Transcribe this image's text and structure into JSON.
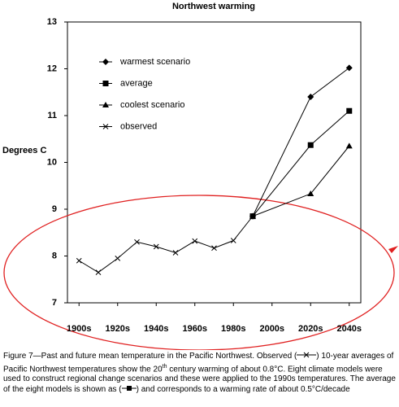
{
  "chart_data": {
    "type": "line",
    "title": "Northwest warming",
    "y_label": "Degrees C",
    "xlim": [
      1894,
      2046
    ],
    "ylim": [
      7,
      13
    ],
    "xticks": [
      {
        "value": 1900,
        "label": "1900s"
      },
      {
        "value": 1920,
        "label": "1920s"
      },
      {
        "value": 1940,
        "label": "1940s"
      },
      {
        "value": 1960,
        "label": "1960s"
      },
      {
        "value": 1980,
        "label": "1980s"
      },
      {
        "value": 2000,
        "label": "2000s"
      },
      {
        "value": 2020,
        "label": "2020s"
      },
      {
        "value": 2040,
        "label": "2040s"
      }
    ],
    "yticks": [
      7,
      8,
      9,
      10,
      11,
      12,
      13
    ],
    "legend": "upper left",
    "series": [
      {
        "name": "warmest scenario",
        "color": "#000000",
        "marker": "diamond",
        "x": [
          1990,
          2020,
          2040
        ],
        "values": [
          8.85,
          11.4,
          12.02
        ]
      },
      {
        "name": "average",
        "color": "#000000",
        "marker": "square",
        "x": [
          1990,
          2020,
          2040
        ],
        "values": [
          8.85,
          10.37,
          11.1
        ]
      },
      {
        "name": "coolest scenario",
        "color": "#000000",
        "marker": "triangle",
        "x": [
          1990,
          2020,
          2040
        ],
        "values": [
          8.85,
          9.33,
          10.35
        ]
      },
      {
        "name": "observed",
        "color": "#000000",
        "marker": "x",
        "x": [
          1900,
          1910,
          1920,
          1930,
          1940,
          1950,
          1960,
          1970,
          1980,
          1990
        ],
        "values": [
          7.9,
          7.65,
          7.95,
          8.3,
          8.2,
          8.07,
          8.32,
          8.17,
          8.33,
          8.85
        ]
      }
    ]
  },
  "caption": {
    "parts": [
      "Figure 7—Past and future mean temperature in the Pacific Northwest.  Observed (",
      ") 10-year averages of Pacific Northwest temperatures show the 20",
      "th",
      " century warming of about 0.8°C.  Eight climate models were used to construct regional change scenarios and these were applied to the 1990s temperatures.  The average of the eight models is shown as (",
      ") and corresponds to a warming rate of about 0.5°C/decade"
    ]
  }
}
